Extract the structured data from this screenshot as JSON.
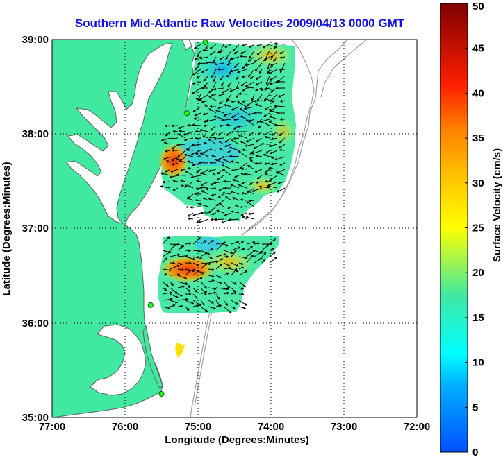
{
  "title": "Southern Mid-Atlantic Raw Velocities 2009/04/13 0000 GMT",
  "x_axis": {
    "label": "Longitude (Degrees:Minutes)",
    "ticks": [
      "77:00",
      "76:00",
      "75:00",
      "74:00",
      "73:00",
      "72:00"
    ]
  },
  "y_axis": {
    "label": "Latitude (Degrees:Minutes)",
    "ticks": [
      "39:00",
      "38:00",
      "37:00",
      "36:00",
      "35:00"
    ]
  },
  "map": {
    "lon_range_west": [
      77,
      72
    ],
    "lat_range": [
      35,
      39
    ],
    "land_color": "#40e8a0",
    "coast_color": "#606060",
    "bathymetry_color": "#a0a0a0",
    "grid": "dotted",
    "radar_sites": [
      {
        "lon_w": 74.9,
        "lat": 38.97
      },
      {
        "lon_w": 75.15,
        "lat": 38.22
      },
      {
        "lon_w": 75.65,
        "lat": 36.19
      },
      {
        "lon_w": 75.5,
        "lat": 35.25
      }
    ]
  },
  "colorbar": {
    "label": "Surface Velocity (cm/s)",
    "min": 0,
    "max": 50,
    "ticks": [
      "0",
      "5",
      "10",
      "15",
      "20",
      "25",
      "30",
      "35",
      "40",
      "45",
      "50"
    ],
    "colormap": "jet"
  }
}
